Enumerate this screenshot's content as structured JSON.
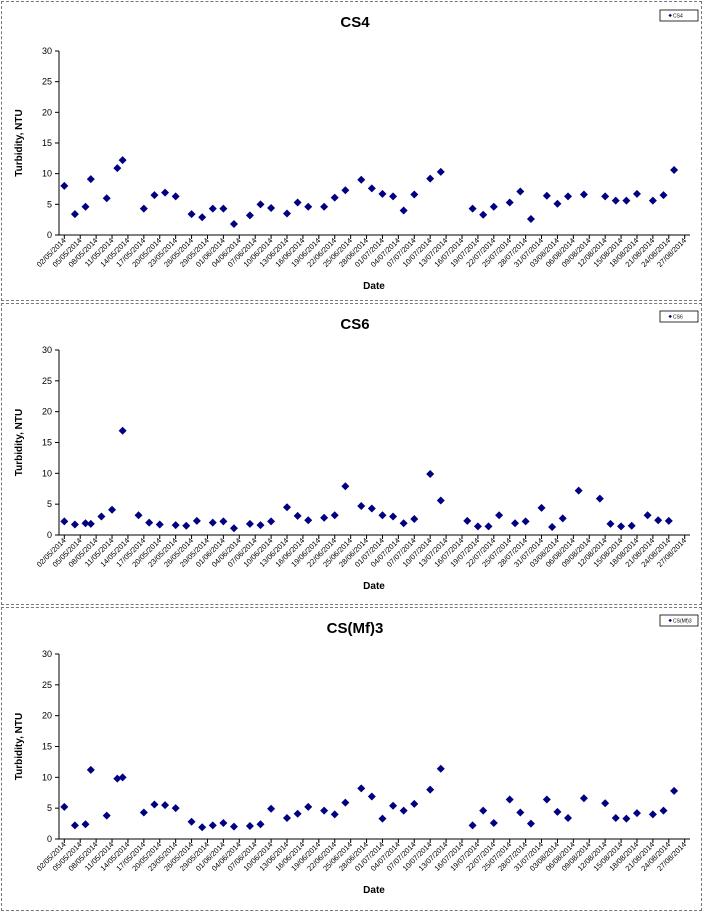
{
  "chart_data": [
    {
      "type": "scatter",
      "title": "CS4",
      "xlabel": "Date",
      "ylabel": "Turbidity, NTU",
      "ylim": [
        0,
        30
      ],
      "yticks": [
        0,
        5,
        10,
        15,
        20,
        25,
        30
      ],
      "grid": false,
      "legend": "top-right",
      "x_tick_labels": [
        "02/05/2014",
        "05/05/2014",
        "08/05/2014",
        "11/05/2014",
        "14/05/2014",
        "17/05/2014",
        "20/05/2014",
        "23/05/2014",
        "26/05/2014",
        "29/05/2014",
        "01/06/2014",
        "04/06/2014",
        "07/06/2014",
        "10/06/2014",
        "13/06/2014",
        "16/06/2014",
        "19/06/2014",
        "22/06/2014",
        "25/06/2014",
        "28/06/2014",
        "01/07/2014",
        "04/07/2014",
        "07/07/2014",
        "10/07/2014",
        "13/07/2014",
        "16/07/2014",
        "19/07/2014",
        "22/07/2014",
        "25/07/2014",
        "28/07/2014",
        "31/07/2014",
        "03/08/2014",
        "06/08/2014",
        "09/08/2014",
        "12/08/2014",
        "15/08/2014",
        "18/08/2014",
        "21/08/2014",
        "24/08/2014",
        "27/08/2014"
      ],
      "series": [
        {
          "name": "CS4",
          "color": "#000080",
          "marker": "diamond",
          "points": [
            {
              "x": "02/05/2014",
              "y": 8.0
            },
            {
              "x": "04/05/2014",
              "y": 3.4
            },
            {
              "x": "06/05/2014",
              "y": 4.6
            },
            {
              "x": "07/05/2014",
              "y": 9.1
            },
            {
              "x": "10/05/2014",
              "y": 6.0
            },
            {
              "x": "12/05/2014",
              "y": 10.9
            },
            {
              "x": "13/05/2014",
              "y": 12.2
            },
            {
              "x": "17/05/2014",
              "y": 4.3
            },
            {
              "x": "19/05/2014",
              "y": 6.5
            },
            {
              "x": "21/05/2014",
              "y": 6.9
            },
            {
              "x": "23/05/2014",
              "y": 6.3
            },
            {
              "x": "26/05/2014",
              "y": 3.4
            },
            {
              "x": "28/05/2014",
              "y": 2.9
            },
            {
              "x": "30/05/2014",
              "y": 4.3
            },
            {
              "x": "01/06/2014",
              "y": 4.3
            },
            {
              "x": "03/06/2014",
              "y": 1.8
            },
            {
              "x": "06/06/2014",
              "y": 3.2
            },
            {
              "x": "08/06/2014",
              "y": 5.0
            },
            {
              "x": "10/06/2014",
              "y": 4.4
            },
            {
              "x": "13/06/2014",
              "y": 3.5
            },
            {
              "x": "15/06/2014",
              "y": 5.3
            },
            {
              "x": "17/06/2014",
              "y": 4.6
            },
            {
              "x": "20/06/2014",
              "y": 4.6
            },
            {
              "x": "22/06/2014",
              "y": 6.1
            },
            {
              "x": "24/06/2014",
              "y": 7.3
            },
            {
              "x": "27/06/2014",
              "y": 9.0
            },
            {
              "x": "29/06/2014",
              "y": 7.6
            },
            {
              "x": "01/07/2014",
              "y": 6.7
            },
            {
              "x": "03/07/2014",
              "y": 6.3
            },
            {
              "x": "05/07/2014",
              "y": 4.0
            },
            {
              "x": "07/07/2014",
              "y": 6.6
            },
            {
              "x": "10/07/2014",
              "y": 9.2
            },
            {
              "x": "12/07/2014",
              "y": 10.3
            },
            {
              "x": "18/07/2014",
              "y": 4.3
            },
            {
              "x": "20/07/2014",
              "y": 3.3
            },
            {
              "x": "22/07/2014",
              "y": 4.6
            },
            {
              "x": "25/07/2014",
              "y": 5.3
            },
            {
              "x": "27/07/2014",
              "y": 7.1
            },
            {
              "x": "29/07/2014",
              "y": 2.6
            },
            {
              "x": "01/08/2014",
              "y": 6.4
            },
            {
              "x": "03/08/2014",
              "y": 5.1
            },
            {
              "x": "05/08/2014",
              "y": 6.3
            },
            {
              "x": "08/08/2014",
              "y": 6.6
            },
            {
              "x": "12/08/2014",
              "y": 6.3
            },
            {
              "x": "14/08/2014",
              "y": 5.6
            },
            {
              "x": "16/08/2014",
              "y": 5.6
            },
            {
              "x": "18/08/2014",
              "y": 6.7
            },
            {
              "x": "21/08/2014",
              "y": 5.6
            },
            {
              "x": "23/08/2014",
              "y": 6.5
            },
            {
              "x": "25/08/2014",
              "y": 10.6
            }
          ]
        }
      ]
    },
    {
      "type": "scatter",
      "title": "CS6",
      "xlabel": "Date",
      "ylabel": "Turbidity, NTU",
      "ylim": [
        0,
        30
      ],
      "yticks": [
        0,
        5,
        10,
        15,
        20,
        25,
        30
      ],
      "grid": false,
      "legend": "top-right",
      "x_tick_labels": [
        "02/05/2014",
        "05/05/2014",
        "08/05/2014",
        "11/05/2014",
        "14/05/2014",
        "17/05/2014",
        "20/05/2014",
        "23/05/2014",
        "26/05/2014",
        "29/05/2014",
        "01/06/2014",
        "04/06/2014",
        "07/06/2014",
        "10/06/2014",
        "13/06/2014",
        "16/06/2014",
        "19/06/2014",
        "22/06/2014",
        "25/06/2014",
        "28/06/2014",
        "01/07/2014",
        "04/07/2014",
        "07/07/2014",
        "10/07/2014",
        "13/07/2014",
        "16/07/2014",
        "19/07/2014",
        "22/07/2014",
        "25/07/2014",
        "28/07/2014",
        "31/07/2014",
        "03/08/2014",
        "06/08/2014",
        "09/08/2014",
        "12/08/2014",
        "15/08/2014",
        "18/08/2014",
        "21/08/2014",
        "24/08/2014",
        "27/08/2014"
      ],
      "series": [
        {
          "name": "CS6",
          "color": "#000080",
          "marker": "diamond",
          "points": [
            {
              "x": "02/05/2014",
              "y": 2.2
            },
            {
              "x": "04/05/2014",
              "y": 1.7
            },
            {
              "x": "06/05/2014",
              "y": 1.9
            },
            {
              "x": "07/05/2014",
              "y": 1.8
            },
            {
              "x": "09/05/2014",
              "y": 3.0
            },
            {
              "x": "11/05/2014",
              "y": 4.1
            },
            {
              "x": "13/05/2014",
              "y": 16.9
            },
            {
              "x": "16/05/2014",
              "y": 3.2
            },
            {
              "x": "18/05/2014",
              "y": 2.0
            },
            {
              "x": "20/05/2014",
              "y": 1.7
            },
            {
              "x": "23/05/2014",
              "y": 1.6
            },
            {
              "x": "25/05/2014",
              "y": 1.5
            },
            {
              "x": "27/05/2014",
              "y": 2.3
            },
            {
              "x": "30/05/2014",
              "y": 2.0
            },
            {
              "x": "01/06/2014",
              "y": 2.2
            },
            {
              "x": "03/06/2014",
              "y": 1.1
            },
            {
              "x": "06/06/2014",
              "y": 1.8
            },
            {
              "x": "08/06/2014",
              "y": 1.6
            },
            {
              "x": "10/06/2014",
              "y": 2.2
            },
            {
              "x": "13/06/2014",
              "y": 4.5
            },
            {
              "x": "15/06/2014",
              "y": 3.1
            },
            {
              "x": "17/06/2014",
              "y": 2.4
            },
            {
              "x": "20/06/2014",
              "y": 2.8
            },
            {
              "x": "22/06/2014",
              "y": 3.2
            },
            {
              "x": "24/06/2014",
              "y": 7.9
            },
            {
              "x": "27/06/2014",
              "y": 4.7
            },
            {
              "x": "29/06/2014",
              "y": 4.3
            },
            {
              "x": "01/07/2014",
              "y": 3.2
            },
            {
              "x": "03/07/2014",
              "y": 3.0
            },
            {
              "x": "05/07/2014",
              "y": 1.9
            },
            {
              "x": "07/07/2014",
              "y": 2.6
            },
            {
              "x": "10/07/2014",
              "y": 9.9
            },
            {
              "x": "12/07/2014",
              "y": 5.6
            },
            {
              "x": "17/07/2014",
              "y": 2.3
            },
            {
              "x": "19/07/2014",
              "y": 1.4
            },
            {
              "x": "21/07/2014",
              "y": 1.4
            },
            {
              "x": "23/07/2014",
              "y": 3.2
            },
            {
              "x": "26/07/2014",
              "y": 1.9
            },
            {
              "x": "28/07/2014",
              "y": 2.2
            },
            {
              "x": "31/07/2014",
              "y": 4.4
            },
            {
              "x": "02/08/2014",
              "y": 1.3
            },
            {
              "x": "04/08/2014",
              "y": 2.7
            },
            {
              "x": "07/08/2014",
              "y": 7.2
            },
            {
              "x": "11/08/2014",
              "y": 5.9
            },
            {
              "x": "13/08/2014",
              "y": 1.8
            },
            {
              "x": "15/08/2014",
              "y": 1.4
            },
            {
              "x": "17/08/2014",
              "y": 1.5
            },
            {
              "x": "20/08/2014",
              "y": 3.2
            },
            {
              "x": "22/08/2014",
              "y": 2.4
            },
            {
              "x": "24/08/2014",
              "y": 2.3
            }
          ]
        }
      ]
    },
    {
      "type": "scatter",
      "title": "CS(Mf)3",
      "xlabel": "Date",
      "ylabel": "Turbidity, NTU",
      "ylim": [
        0,
        30
      ],
      "yticks": [
        0,
        5,
        10,
        15,
        20,
        25,
        30
      ],
      "grid": false,
      "legend": "top-right",
      "x_tick_labels": [
        "02/05/2014",
        "05/05/2014",
        "08/05/2014",
        "11/05/2014",
        "14/05/2014",
        "17/05/2014",
        "20/05/2014",
        "23/05/2014",
        "26/05/2014",
        "29/05/2014",
        "01/06/2014",
        "04/06/2014",
        "07/06/2014",
        "10/06/2014",
        "13/06/2014",
        "16/06/2014",
        "19/06/2014",
        "22/06/2014",
        "25/06/2014",
        "28/06/2014",
        "01/07/2014",
        "04/07/2014",
        "07/07/2014",
        "10/07/2014",
        "13/07/2014",
        "16/07/2014",
        "19/07/2014",
        "22/07/2014",
        "25/07/2014",
        "28/07/2014",
        "31/07/2014",
        "03/08/2014",
        "06/08/2014",
        "09/08/2014",
        "12/08/2014",
        "15/08/2014",
        "18/08/2014",
        "21/08/2014",
        "24/08/2014",
        "27/08/2014"
      ],
      "series": [
        {
          "name": "CS(Mf)3",
          "color": "#000080",
          "marker": "diamond",
          "points": [
            {
              "x": "02/05/2014",
              "y": 5.2
            },
            {
              "x": "04/05/2014",
              "y": 2.2
            },
            {
              "x": "06/05/2014",
              "y": 2.4
            },
            {
              "x": "07/05/2014",
              "y": 11.2
            },
            {
              "x": "10/05/2014",
              "y": 3.8
            },
            {
              "x": "12/05/2014",
              "y": 9.8
            },
            {
              "x": "13/05/2014",
              "y": 10.0
            },
            {
              "x": "17/05/2014",
              "y": 4.3
            },
            {
              "x": "19/05/2014",
              "y": 5.6
            },
            {
              "x": "21/05/2014",
              "y": 5.5
            },
            {
              "x": "23/05/2014",
              "y": 5.0
            },
            {
              "x": "26/05/2014",
              "y": 2.8
            },
            {
              "x": "28/05/2014",
              "y": 1.9
            },
            {
              "x": "30/05/2014",
              "y": 2.2
            },
            {
              "x": "01/06/2014",
              "y": 2.6
            },
            {
              "x": "03/06/2014",
              "y": 2.0
            },
            {
              "x": "06/06/2014",
              "y": 2.1
            },
            {
              "x": "08/06/2014",
              "y": 2.4
            },
            {
              "x": "10/06/2014",
              "y": 4.9
            },
            {
              "x": "13/06/2014",
              "y": 3.4
            },
            {
              "x": "15/06/2014",
              "y": 4.1
            },
            {
              "x": "17/06/2014",
              "y": 5.2
            },
            {
              "x": "20/06/2014",
              "y": 4.6
            },
            {
              "x": "22/06/2014",
              "y": 4.0
            },
            {
              "x": "24/06/2014",
              "y": 5.9
            },
            {
              "x": "27/06/2014",
              "y": 8.2
            },
            {
              "x": "29/06/2014",
              "y": 6.9
            },
            {
              "x": "01/07/2014",
              "y": 3.3
            },
            {
              "x": "03/07/2014",
              "y": 5.4
            },
            {
              "x": "05/07/2014",
              "y": 4.6
            },
            {
              "x": "07/07/2014",
              "y": 5.7
            },
            {
              "x": "10/07/2014",
              "y": 8.0
            },
            {
              "x": "12/07/2014",
              "y": 11.4
            },
            {
              "x": "18/07/2014",
              "y": 2.2
            },
            {
              "x": "20/07/2014",
              "y": 4.6
            },
            {
              "x": "22/07/2014",
              "y": 2.6
            },
            {
              "x": "25/07/2014",
              "y": 6.4
            },
            {
              "x": "27/07/2014",
              "y": 4.3
            },
            {
              "x": "29/07/2014",
              "y": 2.5
            },
            {
              "x": "01/08/2014",
              "y": 6.4
            },
            {
              "x": "03/08/2014",
              "y": 4.4
            },
            {
              "x": "05/08/2014",
              "y": 3.4
            },
            {
              "x": "08/08/2014",
              "y": 6.6
            },
            {
              "x": "12/08/2014",
              "y": 5.8
            },
            {
              "x": "14/08/2014",
              "y": 3.4
            },
            {
              "x": "16/08/2014",
              "y": 3.3
            },
            {
              "x": "18/08/2014",
              "y": 4.2
            },
            {
              "x": "21/08/2014",
              "y": 4.0
            },
            {
              "x": "23/08/2014",
              "y": 4.6
            },
            {
              "x": "25/08/2014",
              "y": 7.8
            }
          ]
        }
      ]
    }
  ]
}
